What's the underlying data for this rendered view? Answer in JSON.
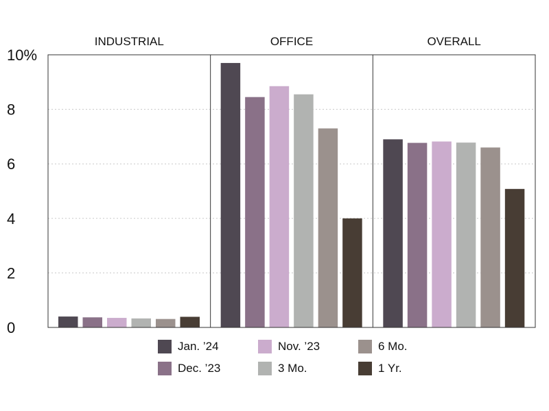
{
  "chart_data": {
    "type": "bar",
    "panels": [
      "INDUSTRIAL",
      "OFFICE",
      "OVERALL"
    ],
    "series": [
      {
        "name": "Jan. ’24",
        "color": "#4f4852",
        "values": [
          0.4,
          9.7,
          6.9
        ]
      },
      {
        "name": "Dec. ’23",
        "color": "#8a7188",
        "values": [
          0.37,
          8.45,
          6.77
        ]
      },
      {
        "name": "Nov. ’23",
        "color": "#cbaccd",
        "values": [
          0.35,
          8.85,
          6.82
        ]
      },
      {
        "name": "3 Mo.",
        "color": "#b1b3b1",
        "values": [
          0.33,
          8.55,
          6.78
        ]
      },
      {
        "name": "6 Mo.",
        "color": "#9b918d",
        "values": [
          0.31,
          7.3,
          6.6
        ]
      },
      {
        "name": "1 Yr.",
        "color": "#483d34",
        "values": [
          0.39,
          4.0,
          5.08
        ]
      }
    ],
    "y_ticks": [
      "0",
      "2",
      "4",
      "6",
      "8",
      "10%"
    ],
    "y_tick_values": [
      0,
      2,
      4,
      6,
      8,
      10
    ],
    "ylim": [
      0,
      10
    ],
    "grid": "dotted horizontal",
    "legend_position": "bottom"
  }
}
